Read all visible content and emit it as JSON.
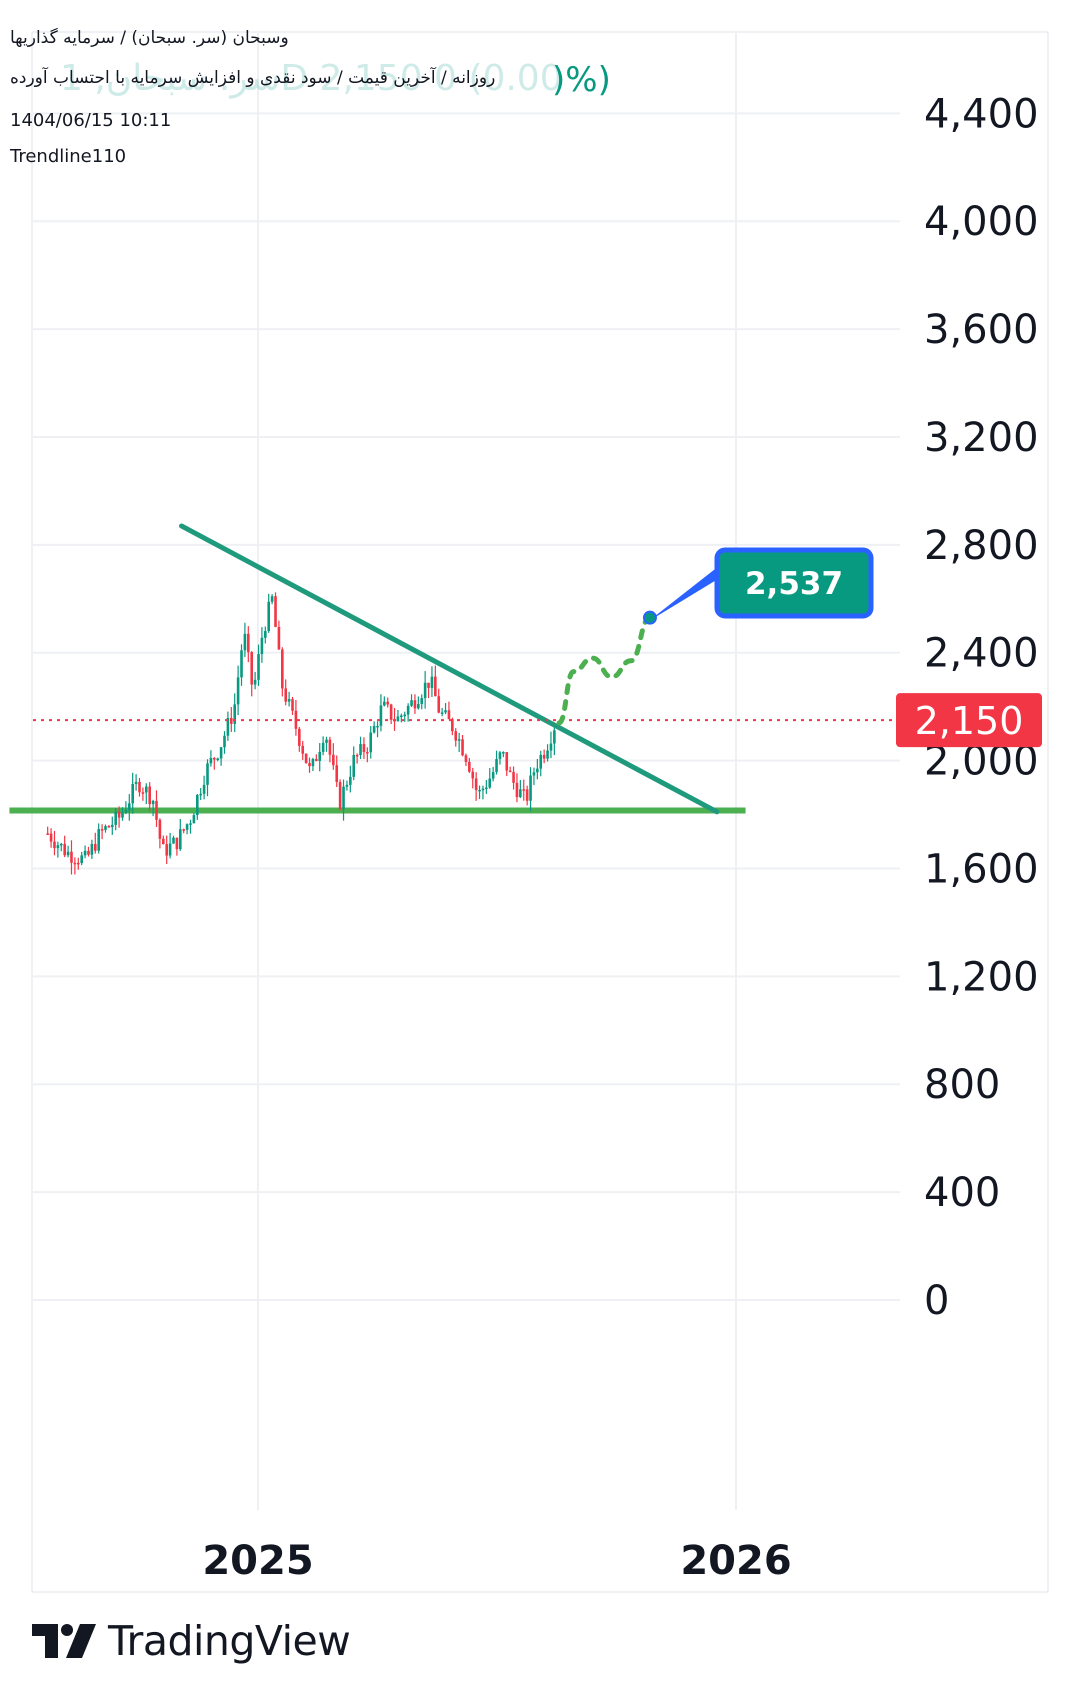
{
  "header": {
    "line1": "وسبحان (سر. سبحان) / سرمایه گذاریها",
    "line2": "روزانه / آخرین قیمت / سود نقدی و افزایش سرمایه با احتساب آورده",
    "ghost": "سر. سبحان, 1D  2,150  0 (0.00",
    "pct": ")%)",
    "timestamp": "1404/06/15 10:11",
    "author": "Trendline110"
  },
  "branding": {
    "name": "TradingView"
  },
  "colors": {
    "up": "#089981",
    "down": "#f23645",
    "trendline": "#1f9a7c",
    "support": "#4caf50",
    "projection": "#4caf50",
    "price_label": "#f23645",
    "target_fill": "#089981",
    "target_border": "#2962ff",
    "grid": "#eef0f3"
  },
  "chart_data": {
    "type": "candlestick",
    "y_axis": {
      "min": 0,
      "max": 4400,
      "ticks": [
        0,
        400,
        800,
        1200,
        1600,
        2000,
        2400,
        2800,
        3200,
        3600,
        4000,
        4400
      ],
      "tick_labels": [
        "0",
        "400",
        "800",
        "1,200",
        "1,600",
        "2,000",
        "2,400",
        "2,800",
        "3,200",
        "3,600",
        "4,000",
        "4,400"
      ]
    },
    "x_axis": {
      "ticks": [
        2025,
        2026
      ],
      "tick_labels": [
        "2025",
        "2026"
      ]
    },
    "last_price": 2150,
    "last_price_label": "2,150",
    "target": 2537,
    "target_label": "2,537",
    "close_path": [
      [
        2024.56,
        1730
      ],
      [
        2024.6,
        1660
      ],
      [
        2024.64,
        1630
      ],
      [
        2024.67,
        1730
      ],
      [
        2024.71,
        1790
      ],
      [
        2024.75,
        1920
      ],
      [
        2024.78,
        1860
      ],
      [
        2024.8,
        1660
      ],
      [
        2024.83,
        1700
      ],
      [
        2024.86,
        1790
      ],
      [
        2024.89,
        1960
      ],
      [
        2024.92,
        2050
      ],
      [
        2024.95,
        2190
      ],
      [
        2024.97,
        2480
      ],
      [
        2024.99,
        2250
      ],
      [
        2025.01,
        2480
      ],
      [
        2025.03,
        2600
      ],
      [
        2025.05,
        2280
      ],
      [
        2025.08,
        2120
      ],
      [
        2025.11,
        1950
      ],
      [
        2025.14,
        2120
      ],
      [
        2025.17,
        1840
      ],
      [
        2025.2,
        2000
      ],
      [
        2025.23,
        2060
      ],
      [
        2025.26,
        2200
      ],
      [
        2025.29,
        2150
      ],
      [
        2025.32,
        2210
      ],
      [
        2025.36,
        2300
      ],
      [
        2025.38,
        2180
      ],
      [
        2025.41,
        2120
      ],
      [
        2025.44,
        2000
      ],
      [
        2025.46,
        1870
      ],
      [
        2025.49,
        1950
      ],
      [
        2025.51,
        2030
      ],
      [
        2025.53,
        1930
      ],
      [
        2025.56,
        1850
      ],
      [
        2025.58,
        1980
      ],
      [
        2025.6,
        2040
      ],
      [
        2025.62,
        2130
      ]
    ],
    "resistance_trendline": [
      [
        2024.84,
        2870
      ],
      [
        2025.96,
        1810
      ]
    ],
    "support_line": {
      "value": 1815,
      "x_range": [
        2024.48,
        2026.02
      ]
    },
    "projection": [
      [
        2025.63,
        2140
      ],
      [
        2025.66,
        2330
      ],
      [
        2025.7,
        2380
      ],
      [
        2025.74,
        2310
      ],
      [
        2025.78,
        2370
      ],
      [
        2025.82,
        2530
      ]
    ],
    "grid": true
  }
}
